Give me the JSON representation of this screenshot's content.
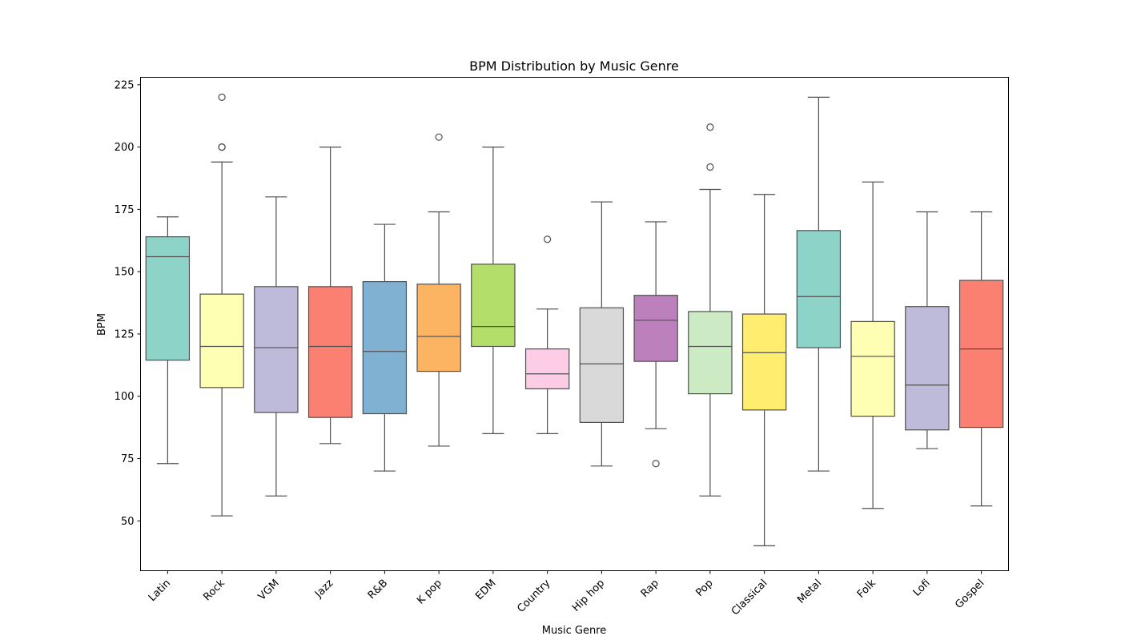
{
  "chart_data": {
    "type": "box",
    "title": "BPM Distribution by Music Genre",
    "xlabel": "Music Genre",
    "ylabel": "BPM",
    "ylim": [
      30,
      228
    ],
    "yticks": [
      50,
      75,
      100,
      125,
      150,
      175,
      200,
      225
    ],
    "grid": false,
    "categories": [
      "Latin",
      "Rock",
      "VGM",
      "Jazz",
      "R&B",
      "K pop",
      "EDM",
      "Country",
      "Hip hop",
      "Rap",
      "Pop",
      "Classical",
      "Metal",
      "Folk",
      "Lofi",
      "Gospel"
    ],
    "colors": [
      "#8dd3c7",
      "#ffffb3",
      "#bebada",
      "#fb8072",
      "#80b1d3",
      "#fdb462",
      "#b3de69",
      "#fccde5",
      "#d9d9d9",
      "#bc80bd",
      "#ccebc5",
      "#ffed6f",
      "#8dd3c7",
      "#ffffb3",
      "#bebada",
      "#fb8072"
    ],
    "boxes": [
      {
        "whisker_low": 73,
        "q1": 114.5,
        "median": 156,
        "q3": 164,
        "whisker_high": 172,
        "outliers": []
      },
      {
        "whisker_low": 52,
        "q1": 103.5,
        "median": 120,
        "q3": 141,
        "whisker_high": 194,
        "outliers": [
          200,
          200,
          220
        ]
      },
      {
        "whisker_low": 60,
        "q1": 93.5,
        "median": 119.5,
        "q3": 144,
        "whisker_high": 180,
        "outliers": []
      },
      {
        "whisker_low": 81,
        "q1": 91.5,
        "median": 120,
        "q3": 144,
        "whisker_high": 200,
        "outliers": []
      },
      {
        "whisker_low": 70,
        "q1": 93,
        "median": 118,
        "q3": 146,
        "whisker_high": 169,
        "outliers": []
      },
      {
        "whisker_low": 80,
        "q1": 110,
        "median": 124,
        "q3": 145,
        "whisker_high": 174,
        "outliers": [
          204
        ]
      },
      {
        "whisker_low": 85,
        "q1": 120,
        "median": 128,
        "q3": 153,
        "whisker_high": 200,
        "outliers": []
      },
      {
        "whisker_low": 85,
        "q1": 103,
        "median": 109,
        "q3": 119,
        "whisker_high": 135,
        "outliers": [
          163
        ]
      },
      {
        "whisker_low": 72,
        "q1": 89.5,
        "median": 113,
        "q3": 135.5,
        "whisker_high": 178,
        "outliers": []
      },
      {
        "whisker_low": 87,
        "q1": 114,
        "median": 130.5,
        "q3": 140.5,
        "whisker_high": 170,
        "outliers": [
          73
        ]
      },
      {
        "whisker_low": 60,
        "q1": 101,
        "median": 120,
        "q3": 134,
        "whisker_high": 183,
        "outliers": [
          192,
          208
        ]
      },
      {
        "whisker_low": 40,
        "q1": 94.5,
        "median": 117.5,
        "q3": 133,
        "whisker_high": 181,
        "outliers": []
      },
      {
        "whisker_low": 70,
        "q1": 119.5,
        "median": 140,
        "q3": 166.5,
        "whisker_high": 220,
        "outliers": []
      },
      {
        "whisker_low": 55,
        "q1": 92,
        "median": 116,
        "q3": 130,
        "whisker_high": 186,
        "outliers": []
      },
      {
        "whisker_low": 79,
        "q1": 86.5,
        "median": 104.5,
        "q3": 136,
        "whisker_high": 174,
        "outliers": []
      },
      {
        "whisker_low": 56,
        "q1": 87.5,
        "median": 119,
        "q3": 146.5,
        "whisker_high": 174,
        "outliers": []
      }
    ]
  }
}
